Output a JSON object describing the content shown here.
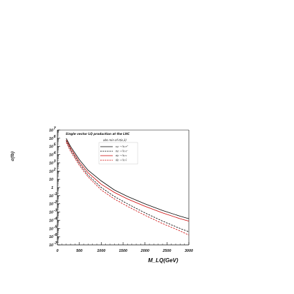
{
  "chart_data": {
    "type": "line",
    "title": "Single vector LQ production at the LHC",
    "subtitle": "abs min of σ(κ,λ)",
    "xlabel": "M_LQ(GeV)",
    "ylabel": "σ(fb)",
    "xlim": [
      0,
      3000
    ],
    "ylim_log10": [
      -7,
      7
    ],
    "y_scale": "log",
    "x_ticks": [
      0,
      500,
      1000,
      1500,
      2000,
      2500,
      3000
    ],
    "x_tick_labels": [
      "0",
      "500",
      "1000",
      "1500",
      "2000",
      "2500",
      "3000"
    ],
    "y_ticks_log10": [
      7,
      6,
      5,
      4,
      3,
      2,
      1,
      0,
      -1,
      -2,
      -3,
      -4,
      -5,
      -6,
      -7
    ],
    "y_tick_labels": [
      "10",
      "10",
      "10",
      "10",
      "10",
      "10",
      "10",
      "1",
      "10",
      "10",
      "10",
      "10",
      "10",
      "10",
      "10"
    ],
    "y_tick_exponents": [
      "7",
      "6",
      "5",
      "4",
      "3",
      "2",
      "",
      "",
      "-1",
      "-2",
      "-3",
      "-4",
      "-5",
      "-6",
      "-7"
    ],
    "grid": false,
    "legend_position": "top-right",
    "legend": [
      {
        "label": "ug → l̃q e⁺",
        "color": "#000000",
        "dash": "solid"
      },
      {
        "label": "ūg → l̃q e⁻",
        "color": "#000000",
        "dash": "dashed"
      },
      {
        "label": "dg → l̃q ν",
        "color": "#cc0000",
        "dash": "solid"
      },
      {
        "label": "d̄g → l̃q ν̄",
        "color": "#cc0000",
        "dash": "dashed"
      }
    ],
    "series": [
      {
        "color": "#000000",
        "dash": "solid",
        "x": [
          200,
          300,
          500,
          700,
          1000,
          1300,
          1600,
          2000,
          2400,
          2800,
          3000
        ],
        "y_log10": [
          6.0,
          5.0,
          3.4,
          2.1,
          0.8,
          -0.3,
          -1.1,
          -2.0,
          -2.8,
          -3.5,
          -3.8
        ]
      },
      {
        "color": "#cc0000",
        "dash": "solid",
        "x": [
          200,
          300,
          500,
          700,
          1000,
          1300,
          1600,
          2000,
          2400,
          2800,
          3000
        ],
        "y_log10": [
          5.8,
          4.8,
          3.1,
          1.8,
          0.4,
          -0.6,
          -1.4,
          -2.3,
          -3.1,
          -3.8,
          -4.1
        ]
      },
      {
        "color": "#000000",
        "dash": "dashed",
        "x": [
          200,
          300,
          500,
          700,
          1000,
          1300,
          1600,
          2000,
          2400,
          2800,
          3000
        ],
        "y_log10": [
          5.7,
          4.6,
          2.9,
          1.5,
          0.0,
          -1.1,
          -2.0,
          -3.1,
          -4.1,
          -5.0,
          -5.4
        ]
      },
      {
        "color": "#cc0000",
        "dash": "dashed",
        "x": [
          200,
          300,
          500,
          700,
          1000,
          1300,
          1600,
          2000,
          2400,
          2800,
          3000
        ],
        "y_log10": [
          5.5,
          4.4,
          2.7,
          1.3,
          -0.3,
          -1.4,
          -2.3,
          -3.4,
          -4.4,
          -5.3,
          -5.8
        ]
      }
    ]
  }
}
